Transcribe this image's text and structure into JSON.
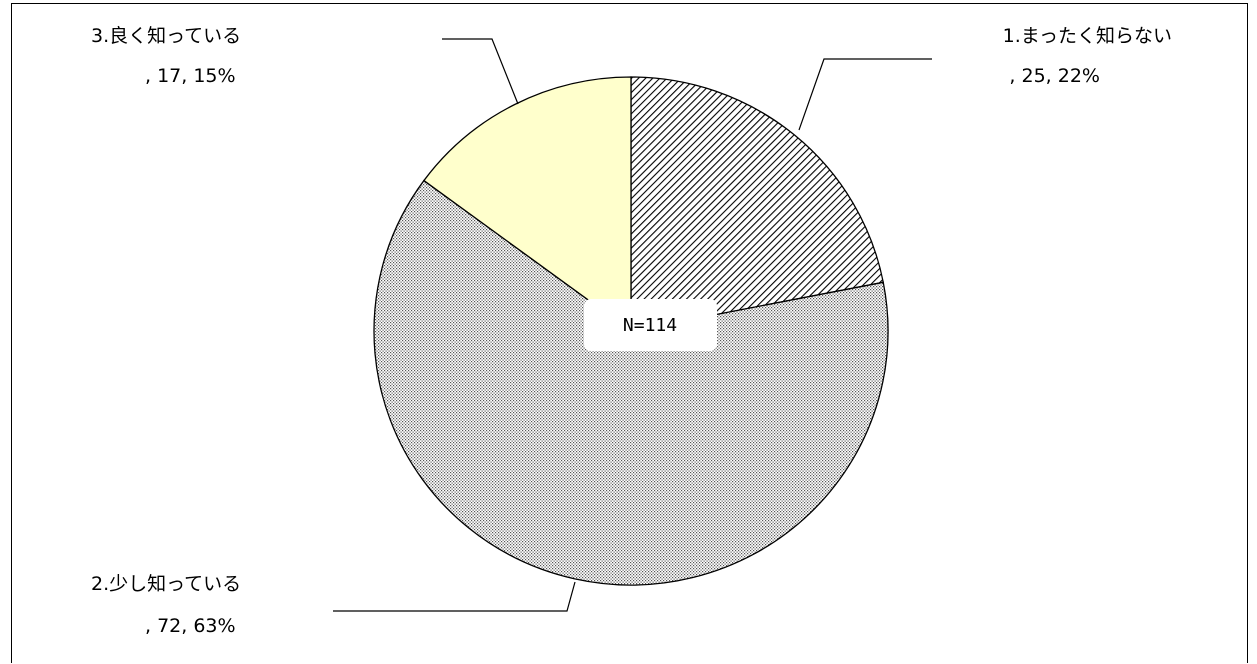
{
  "chart_data": {
    "type": "pie",
    "total_label": "N=114",
    "slices": [
      {
        "label": "1.まったく知らない",
        "value": 25,
        "percent": 22,
        "detail": ", 25, 22%",
        "fill": "hatch"
      },
      {
        "label": "2.少し知っている",
        "value": 72,
        "percent": 63,
        "detail": ", 72, 63%",
        "fill": "dots"
      },
      {
        "label": "3.良く知っている",
        "value": 17,
        "percent": 15,
        "detail": ", 17, 15%",
        "fill": "#ffffcc"
      }
    ],
    "colors": {
      "hatch_fg": "#000000",
      "dots_fg": "#555555",
      "light_yellow": "#ffffcc"
    }
  }
}
